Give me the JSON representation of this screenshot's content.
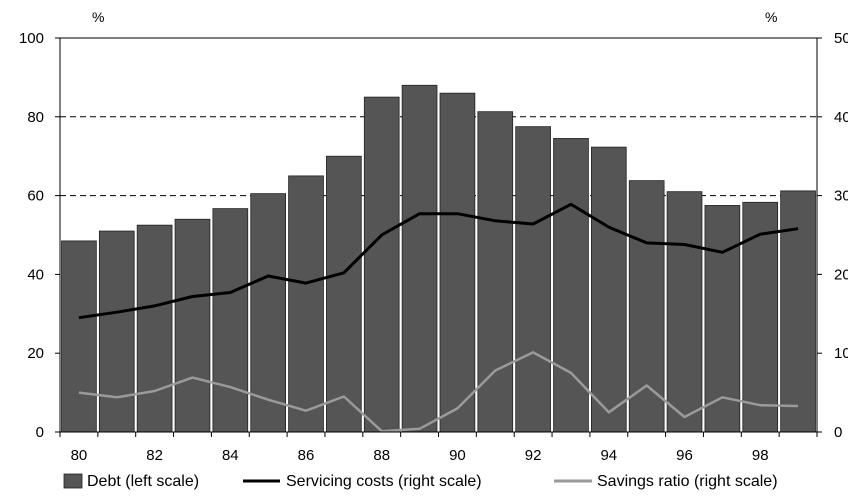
{
  "chart_data": {
    "type": "bar",
    "categories": [
      "80",
      "81",
      "82",
      "83",
      "84",
      "85",
      "86",
      "87",
      "88",
      "89",
      "90",
      "91",
      "92",
      "93",
      "94",
      "95",
      "96",
      "97",
      "98",
      "99"
    ],
    "x_tick_labels": [
      "80",
      "82",
      "84",
      "86",
      "88",
      "90",
      "92",
      "94",
      "96",
      "98"
    ],
    "left_axis": {
      "unit": "%",
      "ylim": [
        0,
        100
      ],
      "ticks": [
        "0",
        "20",
        "40",
        "60",
        "80",
        "100"
      ]
    },
    "right_axis": {
      "unit": "%",
      "ylim": [
        0,
        50
      ],
      "ticks": [
        "0",
        "10",
        "20",
        "30",
        "40",
        "50"
      ]
    },
    "grid": {
      "dashed_lines_left_scale": [
        60,
        80
      ]
    },
    "series": [
      {
        "name": "Debt (left scale)",
        "type": "bar",
        "axis": "left",
        "color": "#555555",
        "values": [
          48.5,
          51,
          52.5,
          54,
          56.7,
          60.5,
          65,
          70,
          85,
          88,
          86,
          81.3,
          77.5,
          74.5,
          72.3,
          63.8,
          61,
          57.5,
          58.3,
          61.2
        ]
      },
      {
        "name": "Servicing costs (right scale)",
        "type": "line",
        "axis": "right",
        "color": "#000000",
        "values": [
          14.5,
          15.2,
          16.0,
          17.2,
          17.7,
          19.8,
          18.9,
          20.2,
          25.0,
          27.7,
          27.7,
          26.8,
          26.4,
          28.9,
          26.0,
          24.0,
          23.8,
          22.8,
          25.1,
          25.8
        ]
      },
      {
        "name": "Savings ratio (right scale)",
        "type": "line",
        "axis": "right",
        "color": "#9a9a9a",
        "values": [
          5.0,
          4.4,
          5.2,
          6.9,
          5.7,
          4.1,
          2.7,
          4.5,
          0.1,
          0.4,
          3.0,
          7.8,
          10.1,
          7.5,
          2.5,
          5.9,
          1.9,
          4.4,
          3.4,
          3.3
        ]
      }
    ],
    "legend_position": "bottom"
  }
}
